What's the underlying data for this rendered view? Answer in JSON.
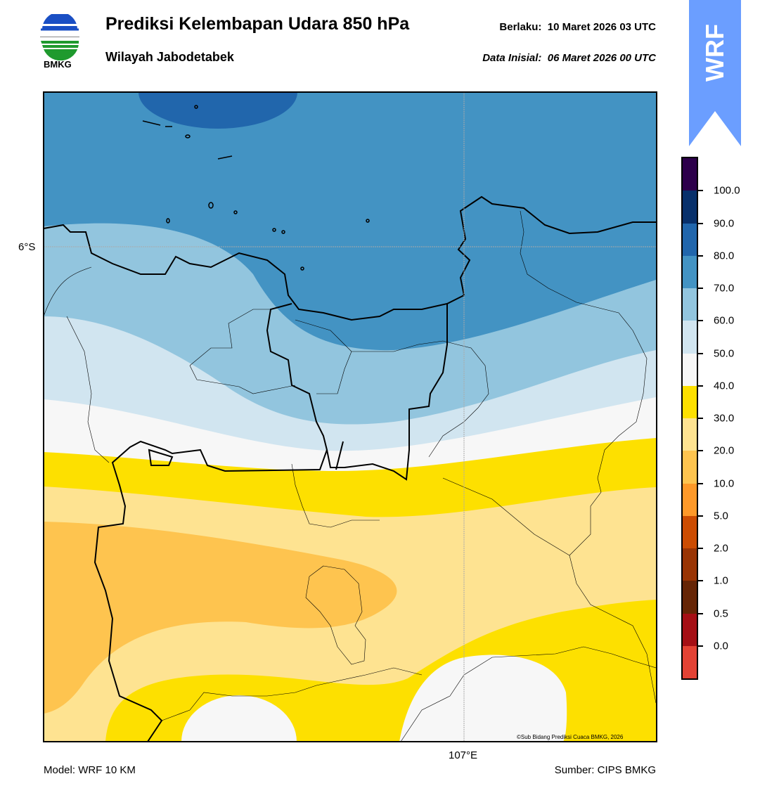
{
  "header": {
    "logo_text": "BMKG",
    "title": "Prediksi Kelembapan Udara 850 hPa",
    "subtitle": "Wilayah Jabodetabek",
    "valid": "Berlaku:  10 Maret 2026 03 UTC",
    "initial": "Data Inisial:  06 Maret 2026 00 UTC",
    "badge": "WRF"
  },
  "map": {
    "lat_label": "6°S",
    "lon_label": "107°E",
    "copyright": "©Sub Bidang Prediksi Cuaca BMKG, 2026"
  },
  "colorbar": {
    "labels": [
      "100.0",
      "90.0",
      "80.0",
      "70.0",
      "60.0",
      "50.0",
      "40.0",
      "30.0",
      "20.0",
      "10.0",
      "5.0",
      "2.0",
      "1.0",
      "0.5",
      "0.0"
    ],
    "colors": [
      "#2d004b",
      "#08306b",
      "#2166ac",
      "#4393c3",
      "#92c5de",
      "#d1e5f0",
      "#f7f7f7",
      "#fde000",
      "#fee391",
      "#fec44f",
      "#fe9929",
      "#cc4c02",
      "#993404",
      "#662506",
      "#a50f15",
      "#e34234"
    ]
  },
  "footer": {
    "model": "Model: WRF 10 KM",
    "source": "Sumber: CIPS BMKG"
  }
}
